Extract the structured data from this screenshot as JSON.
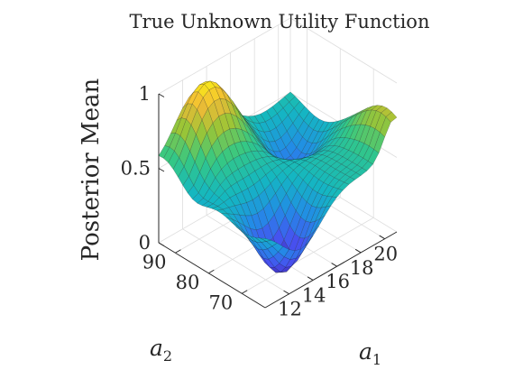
{
  "chart_data": {
    "type": "surface",
    "title": "True Unknown Utility Function",
    "zlabel": "Posterior Mean",
    "xlabel": {
      "base": "a",
      "sub": "1"
    },
    "ylabel": {
      "base": "a",
      "sub": "2"
    },
    "xlim": [
      10,
      21
    ],
    "ylim": [
      63,
      95
    ],
    "zlim": [
      0,
      1
    ],
    "xticks": [
      "12",
      "14",
      "16",
      "18",
      "20"
    ],
    "yticks": [
      "70",
      "80",
      "90"
    ],
    "zticks": [
      "0",
      "0.5",
      "1"
    ],
    "grid": true,
    "colormap": "parula",
    "view": "azimuth -45, elevation 30",
    "grid_resolution": [
      22,
      22
    ],
    "peak_values": {
      "max": 1.0,
      "min": 0.0
    }
  }
}
